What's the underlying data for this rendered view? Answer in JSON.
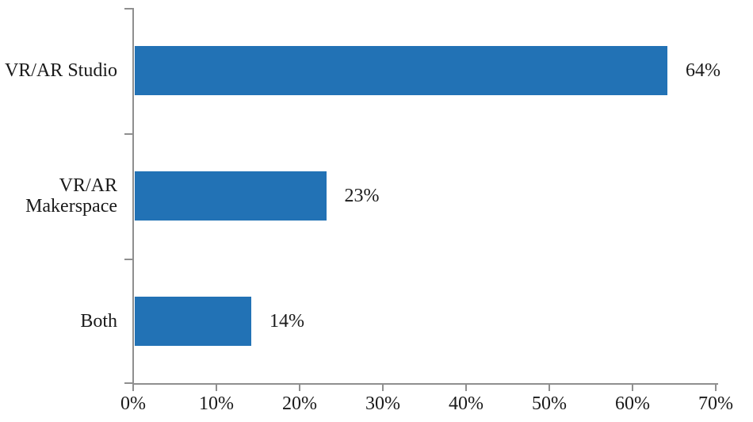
{
  "chart_data": {
    "type": "bar",
    "orientation": "horizontal",
    "categories": [
      "VR/AR Studio",
      "VR/AR Makerspace",
      "Both"
    ],
    "values": [
      64,
      23,
      14
    ],
    "value_labels": [
      "64%",
      "23%",
      "14%"
    ],
    "x_ticks": [
      0,
      10,
      20,
      30,
      40,
      50,
      60,
      70
    ],
    "x_tick_labels": [
      "0%",
      "10%",
      "20%",
      "30%",
      "40%",
      "50%",
      "60%",
      "70%"
    ],
    "xlim": [
      0,
      70
    ],
    "grid": false,
    "legend": "none"
  },
  "style": {
    "bar_color": "#2272b5",
    "axis_color": "#8f8f8f",
    "text_color": "#1a1a1a",
    "background": "#ffffff"
  }
}
